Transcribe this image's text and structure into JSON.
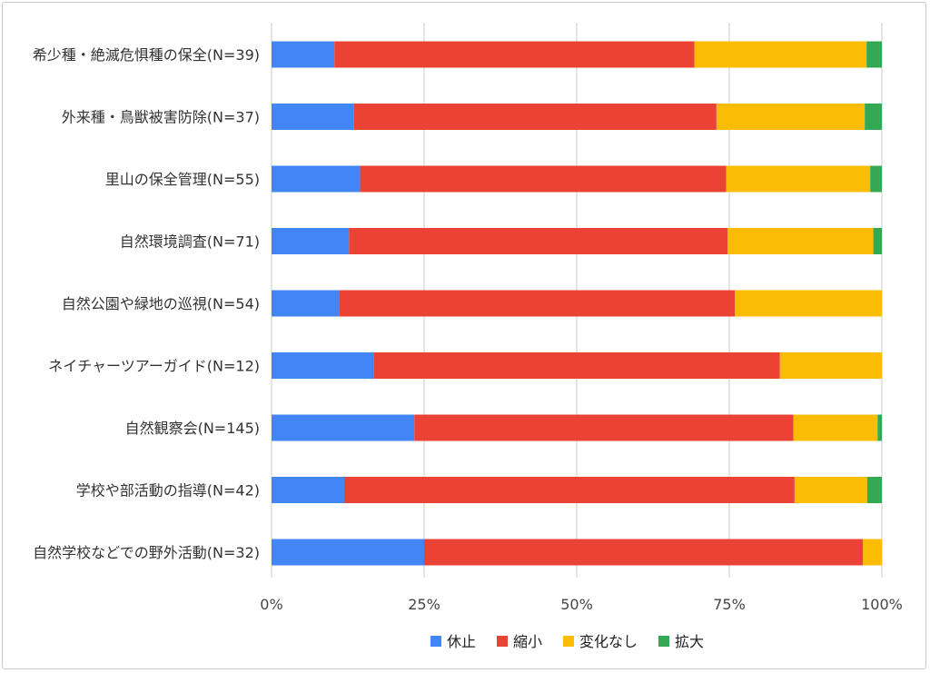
{
  "chart_data": {
    "type": "bar",
    "orientation": "horizontal",
    "stacked": true,
    "normalized": true,
    "title": "",
    "xlabel": "",
    "ylabel": "",
    "xlim": [
      0,
      100
    ],
    "x_ticks": [
      "0%",
      "25%",
      "50%",
      "75%",
      "100%"
    ],
    "grid": true,
    "legend_position": "bottom",
    "categories": [
      "希少種・絶滅危惧種の保全(N=39)",
      "外来種・鳥獣被害防除(N=37)",
      "里山の保全管理(N=55)",
      "自然環境調査(N=71)",
      "自然公園や緑地の巡視(N=54)",
      "ネイチャーツアーガイド(N=12)",
      "自然観察会(N=145)",
      "学校や部活動の指導(N=42)",
      "自然学校などでの野外活動(N=32)"
    ],
    "series": [
      {
        "name": "休止",
        "color": "#4285F4",
        "values": [
          10.3,
          13.5,
          14.5,
          12.7,
          11.1,
          16.7,
          23.4,
          11.9,
          25.0
        ]
      },
      {
        "name": "縮小",
        "color": "#EA4335",
        "values": [
          59.0,
          59.4,
          60.0,
          62.0,
          64.8,
          66.6,
          62.1,
          73.8,
          71.9
        ]
      },
      {
        "name": "変化なし",
        "color": "#FBBC04",
        "values": [
          28.2,
          24.3,
          23.6,
          23.9,
          24.1,
          16.7,
          13.8,
          11.9,
          3.1
        ]
      },
      {
        "name": "拡大",
        "color": "#34A853",
        "values": [
          2.5,
          2.8,
          1.9,
          1.4,
          0.0,
          0.0,
          0.7,
          2.4,
          0.0
        ]
      }
    ]
  },
  "colors": {
    "grid": "#cccccc",
    "frame_border": "#c8c8c8"
  }
}
